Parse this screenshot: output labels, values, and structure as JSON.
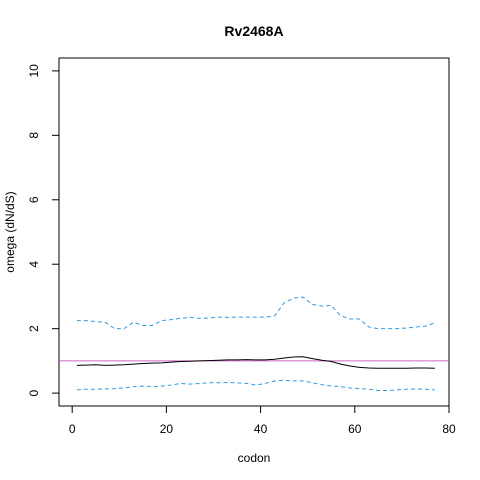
{
  "chart_data": {
    "type": "line",
    "title": "Rv2468A",
    "xlabel": "codon",
    "ylabel": "omega (dN/dS)",
    "xlim": [
      -2.8,
      80
    ],
    "ylim": [
      -0.4,
      10.4
    ],
    "xticks": [
      0,
      20,
      40,
      60,
      80
    ],
    "yticks": [
      0,
      2,
      4,
      6,
      8,
      10
    ],
    "grid": false,
    "legend": "none",
    "reference_line": {
      "y": 1,
      "color": "#cc66cc"
    },
    "series": [
      {
        "role": "estimate",
        "color": "#000000",
        "style": "solid",
        "x": [
          1,
          3,
          5,
          7,
          9,
          11,
          13,
          15,
          17,
          19,
          21,
          23,
          25,
          27,
          29,
          31,
          33,
          35,
          37,
          39,
          41,
          43,
          45,
          47,
          49,
          51,
          53,
          55,
          57,
          59,
          61,
          63,
          65,
          67,
          69,
          71,
          73,
          75,
          77
        ],
        "y": [
          0.86,
          0.87,
          0.88,
          0.86,
          0.87,
          0.88,
          0.9,
          0.92,
          0.93,
          0.94,
          0.96,
          0.98,
          0.99,
          1.0,
          1.01,
          1.02,
          1.03,
          1.03,
          1.04,
          1.03,
          1.03,
          1.05,
          1.09,
          1.12,
          1.13,
          1.07,
          1.02,
          0.98,
          0.9,
          0.84,
          0.8,
          0.78,
          0.77,
          0.77,
          0.77,
          0.77,
          0.78,
          0.78,
          0.77
        ]
      },
      {
        "role": "upper",
        "color": "#3399dd",
        "style": "dashed",
        "x": [
          1,
          3,
          5,
          7,
          9,
          11,
          13,
          15,
          17,
          19,
          21,
          23,
          25,
          27,
          29,
          31,
          33,
          35,
          37,
          39,
          41,
          43,
          45,
          47,
          49,
          51,
          53,
          55,
          57,
          59,
          61,
          63,
          65,
          67,
          69,
          71,
          73,
          75,
          77
        ],
        "y": [
          2.25,
          2.25,
          2.22,
          2.2,
          2.0,
          2.0,
          2.2,
          2.1,
          2.1,
          2.25,
          2.28,
          2.32,
          2.35,
          2.32,
          2.33,
          2.36,
          2.35,
          2.36,
          2.36,
          2.36,
          2.36,
          2.4,
          2.8,
          2.95,
          2.98,
          2.75,
          2.7,
          2.72,
          2.4,
          2.3,
          2.3,
          2.05,
          2.0,
          2.0,
          2.0,
          2.02,
          2.05,
          2.08,
          2.18
        ]
      },
      {
        "role": "lower",
        "color": "#3399dd",
        "style": "dashed",
        "x": [
          1,
          3,
          5,
          7,
          9,
          11,
          13,
          15,
          17,
          19,
          21,
          23,
          25,
          27,
          29,
          31,
          33,
          35,
          37,
          39,
          41,
          43,
          45,
          47,
          49,
          51,
          53,
          55,
          57,
          59,
          61,
          63,
          65,
          67,
          69,
          71,
          73,
          75,
          77
        ],
        "y": [
          0.1,
          0.12,
          0.12,
          0.13,
          0.14,
          0.16,
          0.2,
          0.22,
          0.2,
          0.22,
          0.25,
          0.3,
          0.28,
          0.3,
          0.32,
          0.32,
          0.33,
          0.32,
          0.3,
          0.25,
          0.3,
          0.38,
          0.4,
          0.38,
          0.38,
          0.32,
          0.26,
          0.22,
          0.2,
          0.16,
          0.14,
          0.12,
          0.08,
          0.08,
          0.1,
          0.12,
          0.13,
          0.12,
          0.1
        ]
      }
    ]
  }
}
